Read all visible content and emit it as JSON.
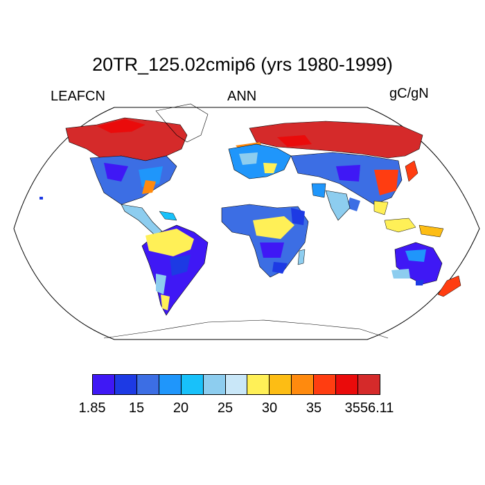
{
  "title": "20TR_125.02cmip6 (yrs 1980-1999)",
  "left_label": "LEAFCN",
  "center_label": "ANN",
  "units": "gC/gN",
  "projection": "robinson",
  "colorbar": {
    "colors": [
      "#3f18f5",
      "#1d3ae4",
      "#3c6ee4",
      "#1f96fb",
      "#18c1fa",
      "#8dcdef",
      "#c9e7f8",
      "#fff057",
      "#fdbd14",
      "#ff8a0e",
      "#ff3d11",
      "#ea0b0b",
      "#d52a2a"
    ],
    "tick_labels": [
      "1.85",
      "15",
      "20",
      "25",
      "30",
      "35",
      "3556.11"
    ]
  }
}
